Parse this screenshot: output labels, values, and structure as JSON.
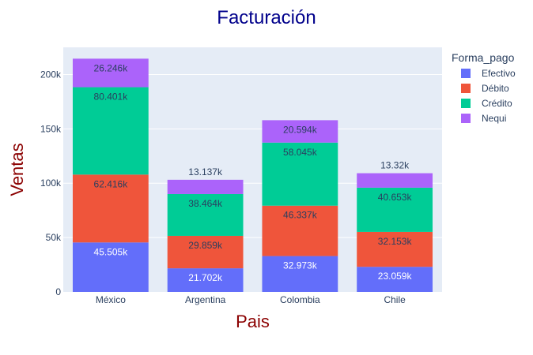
{
  "chart_data": {
    "type": "bar",
    "stacked": true,
    "title": "Facturación",
    "xlabel": "Pais",
    "ylabel": "Ventas",
    "categories": [
      "México",
      "Argentina",
      "Colombia",
      "Chile"
    ],
    "ylim": [
      0,
      225000
    ],
    "yticks": [
      0,
      50000,
      100000,
      150000,
      200000
    ],
    "ytick_labels": [
      "0",
      "50k",
      "100k",
      "150k",
      "200k"
    ],
    "grid": true,
    "legend": {
      "title": "Forma_pago",
      "position": "top-right"
    },
    "series": [
      {
        "name": "Efectivo",
        "color": "#636efa",
        "label_color": "#ffffff",
        "values": [
          45505,
          21702,
          32973,
          23059
        ],
        "labels": [
          "45.505k",
          "21.702k",
          "32.973k",
          "23.059k"
        ]
      },
      {
        "name": "Débito",
        "color": "#ef553b",
        "label_color": "#2a3f5f",
        "values": [
          62416,
          29859,
          46337,
          32153
        ],
        "labels": [
          "62.416k",
          "29.859k",
          "46.337k",
          "32.153k"
        ]
      },
      {
        "name": "Crédito",
        "color": "#00cc96",
        "label_color": "#2a3f5f",
        "values": [
          80401,
          38464,
          58045,
          40653
        ],
        "labels": [
          "80.401k",
          "38.464k",
          "58.045k",
          "40.653k"
        ]
      },
      {
        "name": "Nequi",
        "color": "#ab63fa",
        "label_color": "#2a3f5f",
        "values": [
          26246,
          13137,
          20594,
          13320
        ],
        "labels": [
          "26.246k",
          "13.137k",
          "20.594k",
          "13.32k"
        ]
      }
    ],
    "colors": {
      "plot_bg": "#e5ecf6",
      "grid": "#ffffff",
      "title": "#00008b",
      "axis_title": "#8b0000",
      "text": "#2a3f5f"
    }
  }
}
